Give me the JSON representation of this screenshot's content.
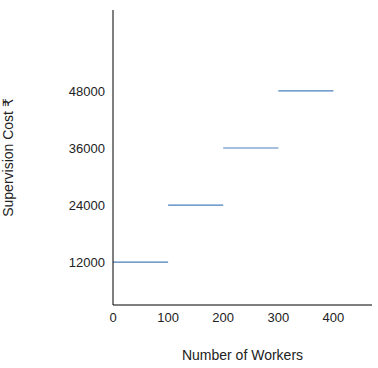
{
  "chart_data": {
    "type": "line",
    "x_label": "Number of Workers",
    "y_label": "Supervision Cost ₹",
    "segments": [
      {
        "x": [
          0,
          100
        ],
        "values": [
          12000,
          12000
        ]
      },
      {
        "x": [
          100,
          200
        ],
        "values": [
          24000,
          24000
        ]
      },
      {
        "x": [
          200,
          300
        ],
        "values": [
          36000,
          36000
        ]
      },
      {
        "x": [
          300,
          400
        ],
        "values": [
          48000,
          48000
        ]
      }
    ],
    "color": "#4a7ebb",
    "xlim": [
      0,
      470
    ],
    "xticks": [
      0,
      100,
      200,
      300,
      400
    ],
    "ylim": [
      3000,
      65000
    ],
    "yticks": [
      12000,
      24000,
      36000,
      48000
    ],
    "grid": false
  }
}
